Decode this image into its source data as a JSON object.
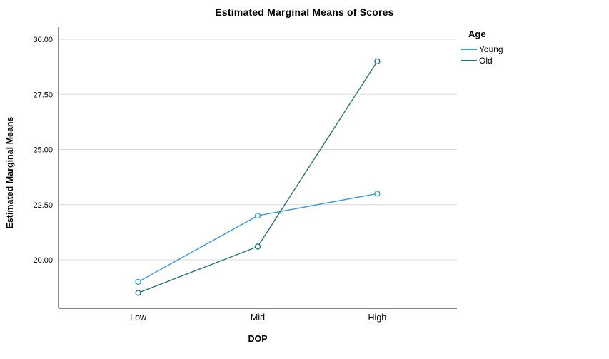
{
  "chart_data": {
    "type": "line",
    "title": "Estimated Marginal Means of Scores",
    "xlabel": "DOP",
    "ylabel": "Estimated Marginal Means",
    "categories": [
      "Low",
      "Mid",
      "High"
    ],
    "series": [
      {
        "name": "Young",
        "color": "#3A9DDC",
        "values": [
          19.0,
          22.0,
          23.0
        ]
      },
      {
        "name": "Old",
        "color": "#26737B",
        "values": [
          18.5,
          20.6,
          29.0
        ]
      }
    ],
    "legend": {
      "title": "Age",
      "position": "top-right"
    },
    "yticks": {
      "values": [
        20,
        22.5,
        25,
        27.5,
        30
      ],
      "labels": [
        "20.00",
        "22.50",
        "25.00",
        "27.50",
        "30.00"
      ]
    },
    "ylim": [
      17.8,
      30.55
    ],
    "grid": true,
    "marker": "open-circle",
    "colors": {
      "grid": "#D9D9D9",
      "axis": "#595959",
      "text": "#000000"
    }
  }
}
